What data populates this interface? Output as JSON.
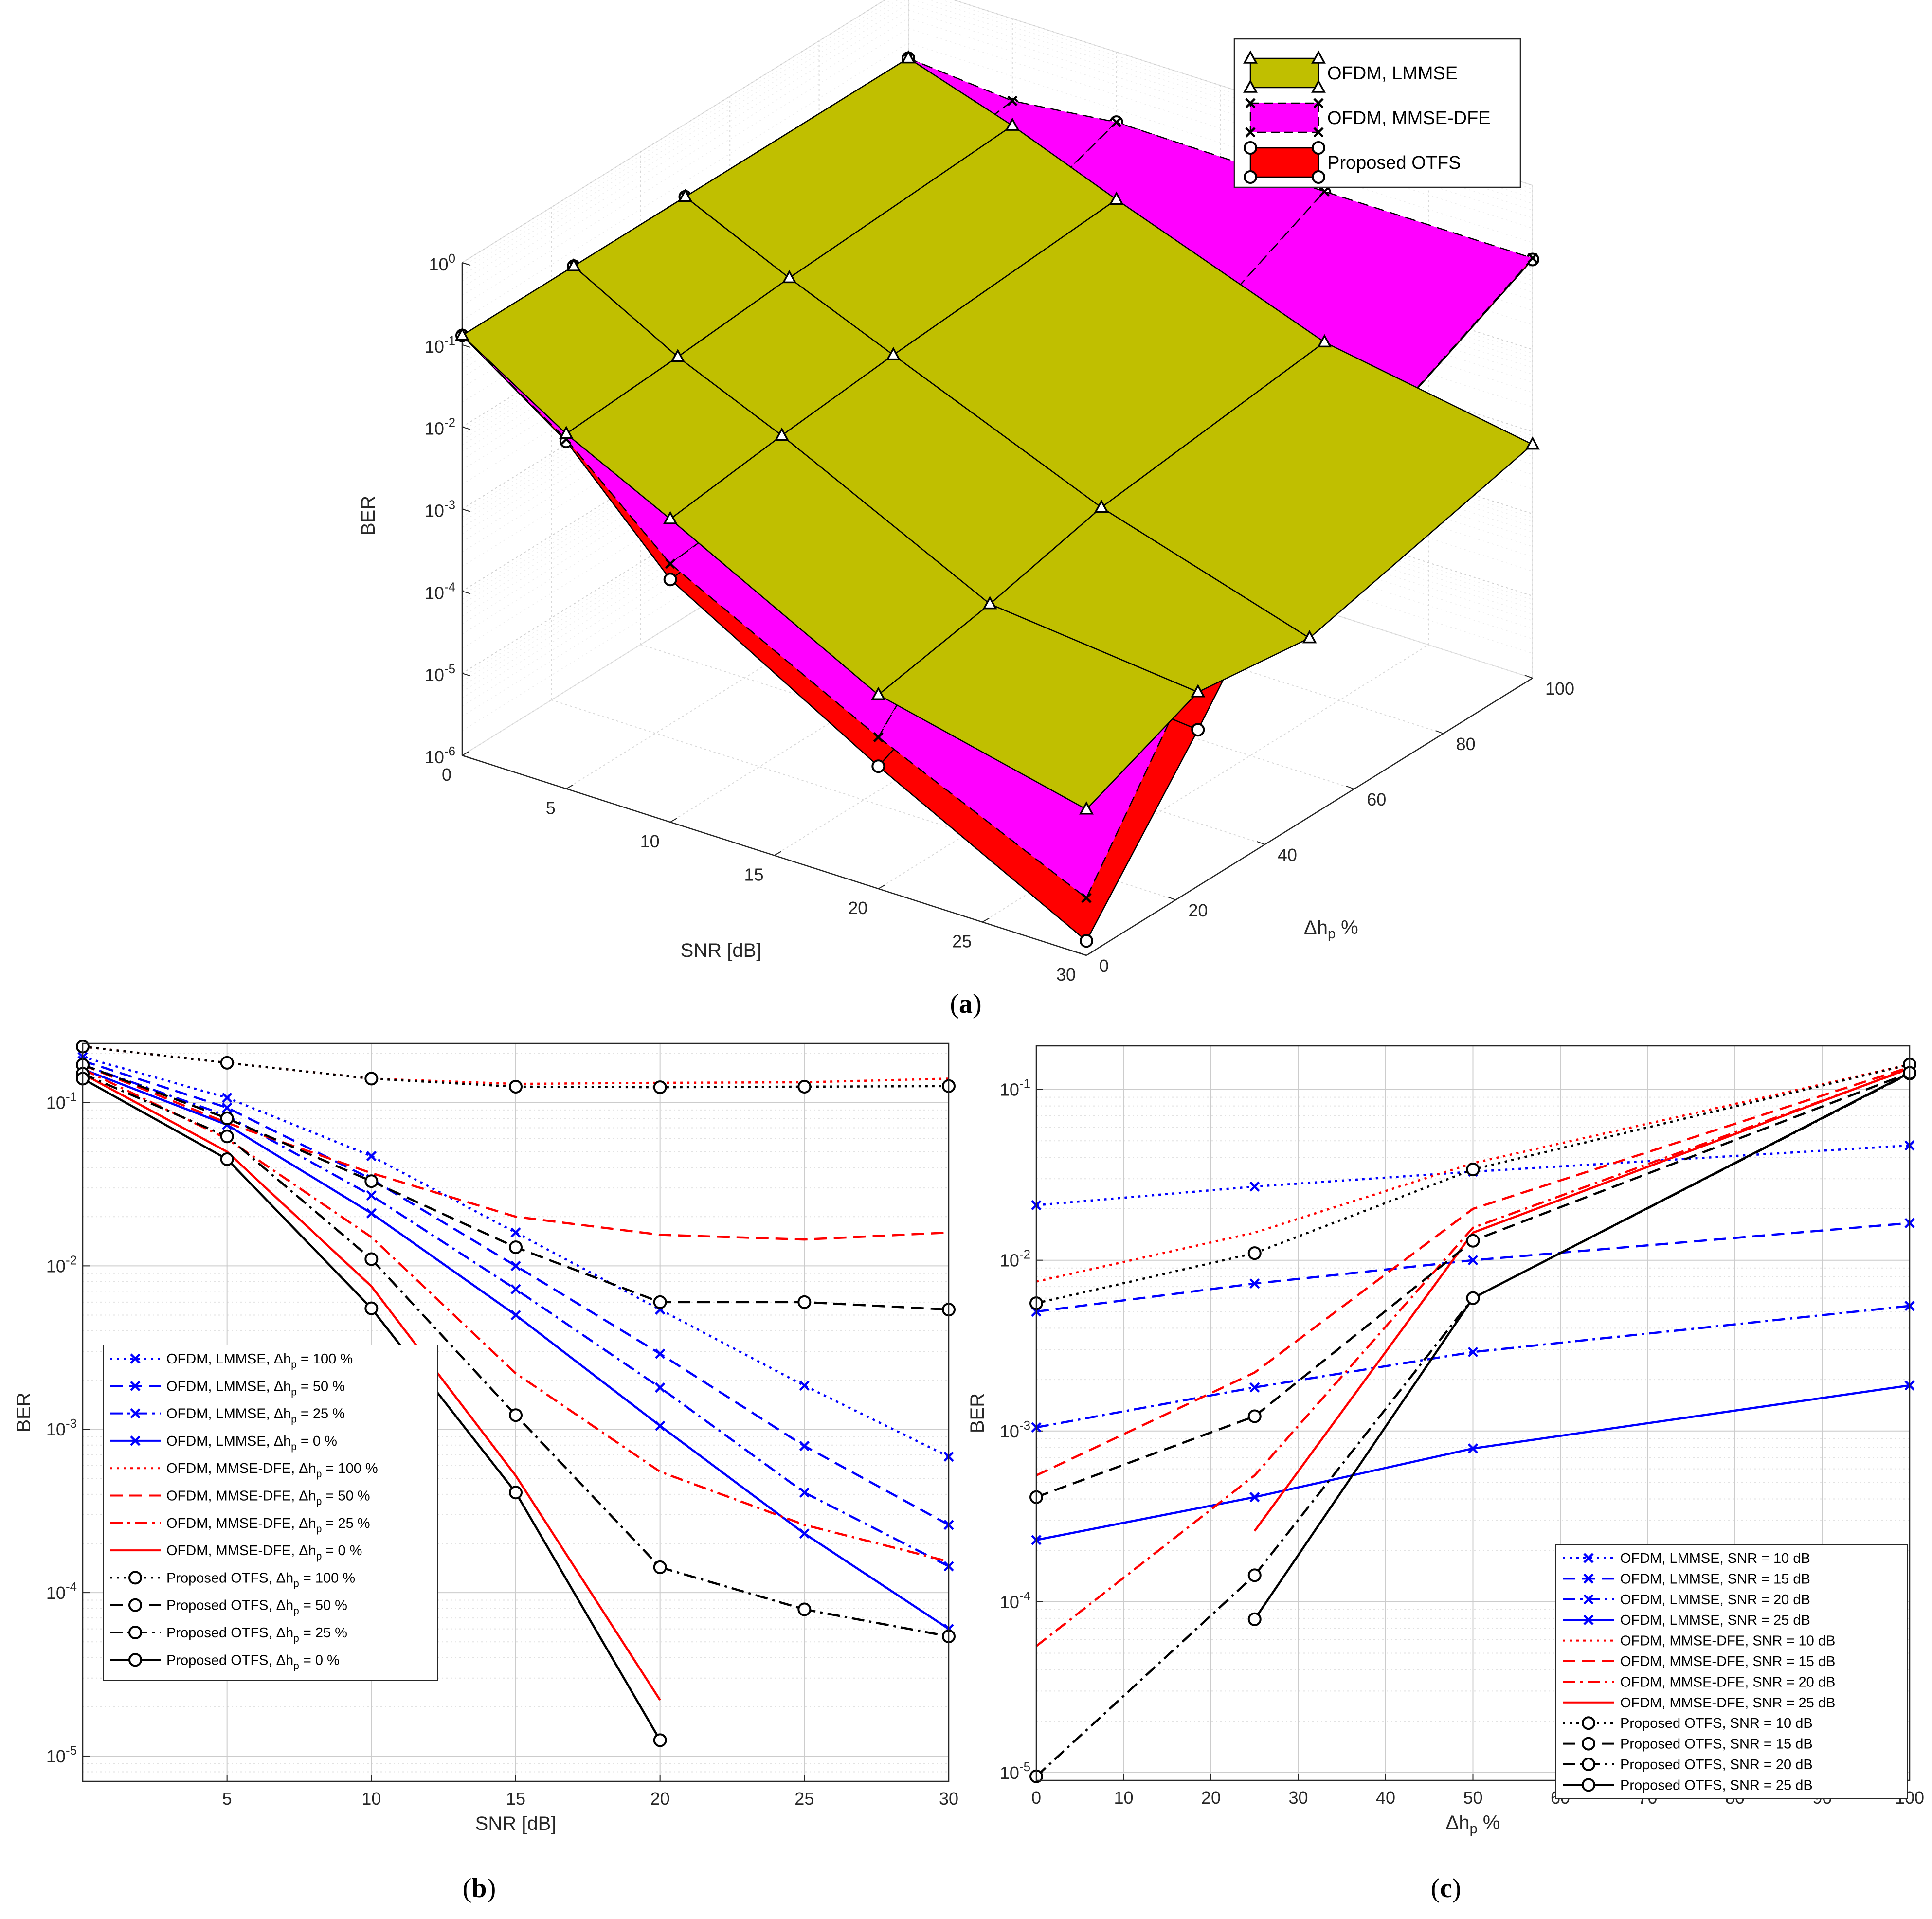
{
  "colors": {
    "lmmse3d": "#c0bf00",
    "dfe3d": "#ff00ff",
    "otfs3d": "#ff0000",
    "lmmse": "#0000ff",
    "dfe": "#ff0000",
    "otfs": "#000000",
    "grid": "#cccccc"
  },
  "chart_data": [
    {
      "id": "a",
      "type": "surface3d",
      "caption": "(a)",
      "caption_letter": "a",
      "xlabel": "SNR [dB]",
      "ylabel": "Δh",
      "ylabel_sub": "p",
      "ylabel_unit": "%",
      "zlabel": "BER",
      "snr": [
        0,
        5,
        10,
        15,
        20,
        25,
        30
      ],
      "dh": [
        0,
        20,
        40,
        60,
        80,
        100
      ],
      "x_ticks": [
        "0",
        "5",
        "10",
        "15",
        "20",
        "25",
        "30"
      ],
      "y_ticks": [
        "0",
        "20",
        "40",
        "60",
        "80",
        "100"
      ],
      "z_ticks": [
        {
          "b": "10",
          "e": "0"
        },
        {
          "b": "10",
          "e": "-1"
        },
        {
          "b": "10",
          "e": "-2"
        },
        {
          "b": "10",
          "e": "-3"
        },
        {
          "b": "10",
          "e": "-4"
        },
        {
          "b": "10",
          "e": "-5"
        },
        {
          "b": "10",
          "e": "-6"
        }
      ],
      "legend": [
        "OFDM, LMMSE",
        "OFDM, MMSE-DFE",
        "Proposed OTFS"
      ],
      "surfaces": [
        {
          "name": "Proposed OTFS",
          "marker": "o",
          "color": "otfs3d",
          "dh": [
            0,
            25,
            50,
            100
          ],
          "ber": [
            [
              0.13,
              0.017,
              0.0009,
              3.1e-05,
              1.5e-06
            ],
            [
              0.13,
              0.017,
              0.0012,
              0.00014,
              8e-05
            ],
            [
              0.13,
              0.03,
              0.012,
              0.006,
              0.0055
            ],
            [
              0.13,
              0.09,
              0.14,
              0.125,
              0.125
            ]
          ]
        },
        {
          "name": "OFDM, MMSE-DFE",
          "marker": "x",
          "color": "dfe3d",
          "dh": [
            0,
            25,
            50,
            100
          ],
          "ber": [
            [
              0.13,
              0.018,
              0.0014,
              7e-05,
              5e-06
            ],
            [
              0.13,
              0.02,
              0.002,
              0.0022,
              0.00055
            ],
            [
              0.13,
              0.04,
              0.014,
              0.0062,
              0.0056
            ],
            [
              0.13,
              0.1,
              0.14,
              0.13,
              0.13
            ]
          ]
        },
        {
          "name": "OFDM, LMMSE",
          "marker": "triangle",
          "color": "lmmse3d",
          "dh": [
            0,
            25,
            50,
            100
          ],
          "ber": [
            [
              0.13,
              0.021,
              0.0049,
              0.00023,
              6e-05
            ],
            [
              0.13,
              0.026,
              0.0073,
              0.00042,
              0.00023
            ],
            [
              0.13,
              0.034,
              0.01,
              0.0009,
              0.00015
            ],
            [
              0.13,
              0.05,
              0.016,
              0.0019,
              0.0007
            ]
          ]
        }
      ]
    },
    {
      "id": "b",
      "type": "line",
      "caption": "(b)",
      "caption_letter": "b",
      "xlabel": "SNR [dB]",
      "ylabel": "BER",
      "xlim": [
        0,
        30
      ],
      "ylim": [
        7e-06,
        0.23
      ],
      "yscale": "log",
      "x_ticks": [
        5,
        10,
        15,
        20,
        25,
        30
      ],
      "y_ticks": [
        {
          "v": 0.1,
          "b": "10",
          "e": "-1"
        },
        {
          "v": 0.01,
          "b": "10",
          "e": "-2"
        },
        {
          "v": 0.001,
          "b": "10",
          "e": "-3"
        },
        {
          "v": 0.0001,
          "b": "10",
          "e": "-4"
        },
        {
          "v": 1e-05,
          "b": "10",
          "e": "-5"
        }
      ],
      "x": [
        0,
        5,
        10,
        15,
        20,
        25,
        30
      ],
      "series": [
        {
          "pre": "OFDM, LMMSE, Δh",
          "sub": "p",
          "post": " = 100 %",
          "color": "lmmse",
          "dash": "dot",
          "marker": "x",
          "values": [
            0.19,
            0.107,
            0.047,
            0.016,
            0.0054,
            0.00185,
            0.00068
          ]
        },
        {
          "pre": "OFDM, LMMSE, Δh",
          "sub": "p",
          "post": " = 50 %",
          "color": "lmmse",
          "dash": "dash",
          "marker": "x",
          "values": [
            0.18,
            0.093,
            0.034,
            0.01,
            0.0029,
            0.00079,
            0.00026
          ]
        },
        {
          "pre": "OFDM, LMMSE, Δh",
          "sub": "p",
          "post": " = 25 %",
          "color": "lmmse",
          "dash": "dashdot",
          "marker": "x",
          "values": [
            0.17,
            0.083,
            0.027,
            0.0072,
            0.0018,
            0.00041,
            0.000145
          ]
        },
        {
          "pre": "OFDM, LMMSE, Δh",
          "sub": "p",
          "post": " = 0 %",
          "color": "lmmse",
          "dash": "solid",
          "marker": "x",
          "values": [
            0.16,
            0.073,
            0.021,
            0.005,
            0.00105,
            0.00023,
            6e-05
          ]
        },
        {
          "pre": "OFDM, MMSE-DFE, Δh",
          "sub": "p",
          "post": " = 100 %",
          "color": "dfe",
          "dash": "dot",
          "marker": "none",
          "values": [
            0.22,
            0.175,
            0.14,
            0.13,
            0.132,
            0.133,
            0.14
          ]
        },
        {
          "pre": "OFDM, MMSE-DFE, Δh",
          "sub": "p",
          "post": " = 50 %",
          "color": "dfe",
          "dash": "dash",
          "marker": "none",
          "values": [
            0.17,
            0.075,
            0.037,
            0.02,
            0.0155,
            0.0145,
            0.016
          ]
        },
        {
          "pre": "OFDM, MMSE-DFE, Δh",
          "sub": "p",
          "post": " = 25 %",
          "color": "dfe",
          "dash": "dashdot",
          "marker": "none",
          "values": [
            0.16,
            0.06,
            0.015,
            0.0022,
            0.00055,
            0.00026,
            0.000155
          ]
        },
        {
          "pre": "OFDM, MMSE-DFE, Δh",
          "sub": "p",
          "post": " = 0 %",
          "color": "dfe",
          "dash": "solid",
          "marker": "none",
          "values": [
            0.15,
            0.05,
            0.0075,
            0.00052,
            2.2e-05,
            null,
            null
          ]
        },
        {
          "pre": "Proposed OTFS, Δh",
          "sub": "p",
          "post": " = 100 %",
          "color": "otfs",
          "dash": "dot",
          "marker": "o",
          "values": [
            0.22,
            0.175,
            0.14,
            0.125,
            0.124,
            0.125,
            0.126
          ]
        },
        {
          "pre": "Proposed OTFS, Δh",
          "sub": "p",
          "post": " = 50 %",
          "color": "otfs",
          "dash": "dash",
          "marker": "o",
          "values": [
            0.17,
            0.08,
            0.033,
            0.013,
            0.006,
            0.006,
            0.0054
          ]
        },
        {
          "pre": "Proposed OTFS, Δh",
          "sub": "p",
          "post": " = 25 %",
          "color": "otfs",
          "dash": "dashdot",
          "marker": "o",
          "values": [
            0.15,
            0.062,
            0.011,
            0.00122,
            0.000143,
            7.9e-05,
            5.4e-05
          ]
        },
        {
          "pre": "Proposed OTFS, Δh",
          "sub": "p",
          "post": " = 0 %",
          "color": "otfs",
          "dash": "solid",
          "marker": "o",
          "values": [
            0.14,
            0.045,
            0.0055,
            0.00041,
            1.25e-05,
            null,
            null
          ]
        }
      ]
    },
    {
      "id": "c",
      "type": "line",
      "caption": "(c)",
      "caption_letter": "c",
      "xlabel": "Δh",
      "xlabel_sub": "p",
      "xlabel_unit": "%",
      "ylabel": "BER",
      "xlim": [
        0,
        100
      ],
      "ylim": [
        9e-06,
        0.18
      ],
      "yscale": "log",
      "x_ticks": [
        0,
        10,
        20,
        30,
        40,
        50,
        60,
        70,
        80,
        90,
        100
      ],
      "y_ticks": [
        {
          "v": 0.1,
          "b": "10",
          "e": "-1"
        },
        {
          "v": 0.01,
          "b": "10",
          "e": "-2"
        },
        {
          "v": 0.001,
          "b": "10",
          "e": "-3"
        },
        {
          "v": 0.0001,
          "b": "10",
          "e": "-4"
        },
        {
          "v": 1e-05,
          "b": "10",
          "e": "-5"
        }
      ],
      "x": [
        0,
        25,
        50,
        100
      ],
      "series": [
        {
          "label": "OFDM, LMMSE, SNR = 10 dB",
          "color": "lmmse",
          "dash": "dot",
          "marker": "x",
          "values": [
            0.021,
            0.027,
            0.033,
            0.047
          ]
        },
        {
          "label": "OFDM, LMMSE, SNR = 15 dB",
          "color": "lmmse",
          "dash": "dash",
          "marker": "x",
          "values": [
            0.005,
            0.0073,
            0.01,
            0.0165
          ]
        },
        {
          "label": "OFDM, LMMSE, SNR = 20 dB",
          "color": "lmmse",
          "dash": "dashdot",
          "marker": "x",
          "values": [
            0.00105,
            0.0018,
            0.0029,
            0.0054
          ]
        },
        {
          "label": "OFDM, LMMSE, SNR = 25 dB",
          "color": "lmmse",
          "dash": "solid",
          "marker": "x",
          "values": [
            0.00023,
            0.00041,
            0.00079,
            0.00185
          ]
        },
        {
          "label": "OFDM, MMSE-DFE, SNR = 10 dB",
          "color": "dfe",
          "dash": "dot",
          "marker": "none",
          "values": [
            0.0075,
            0.0145,
            0.037,
            0.14
          ]
        },
        {
          "label": "OFDM, MMSE-DFE, SNR = 15 dB",
          "color": "dfe",
          "dash": "dash",
          "marker": "none",
          "values": [
            0.00055,
            0.0022,
            0.02,
            0.135
          ]
        },
        {
          "label": "OFDM, MMSE-DFE, SNR = 20 dB",
          "color": "dfe",
          "dash": "dashdot",
          "marker": "none",
          "values": [
            5.5e-05,
            0.00055,
            0.0155,
            0.132
          ]
        },
        {
          "label": "OFDM, MMSE-DFE, SNR = 25 dB",
          "color": "dfe",
          "dash": "solid",
          "marker": "none",
          "values": [
            null,
            0.00026,
            0.0145,
            0.133
          ]
        },
        {
          "label": "Proposed OTFS, SNR = 10 dB",
          "color": "otfs",
          "dash": "dot",
          "marker": "o",
          "values": [
            0.0056,
            0.011,
            0.034,
            0.14
          ]
        },
        {
          "label": "Proposed OTFS, SNR = 15 dB",
          "color": "otfs",
          "dash": "dash",
          "marker": "o",
          "values": [
            0.00041,
            0.00122,
            0.013,
            0.125
          ]
        },
        {
          "label": "Proposed OTFS, SNR = 20 dB",
          "color": "otfs",
          "dash": "dashdot",
          "marker": "o",
          "values": [
            9.5e-06,
            0.000143,
            0.006,
            0.124
          ]
        },
        {
          "label": "Proposed OTFS, SNR = 25 dB",
          "color": "otfs",
          "dash": "solid",
          "marker": "o",
          "values": [
            null,
            7.9e-05,
            0.006,
            0.125
          ]
        }
      ]
    }
  ]
}
